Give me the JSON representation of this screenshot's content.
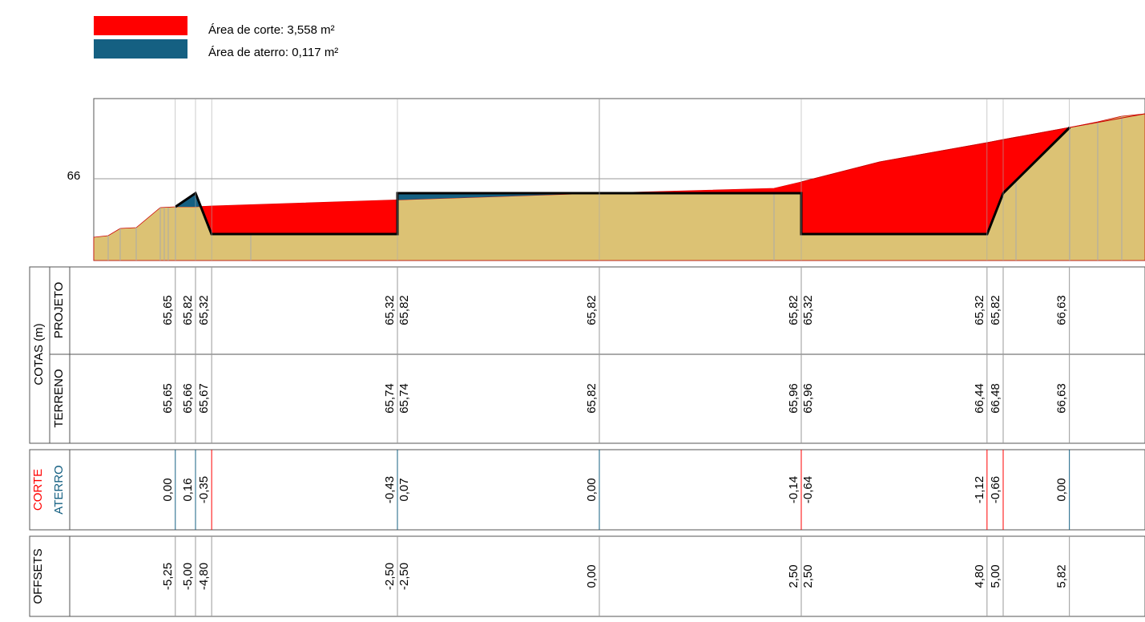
{
  "legend": [
    {
      "label": "Área de corte: 3,558 m²"
    },
    {
      "label": "Área de aterro: 0,117 m²"
    }
  ],
  "axis_label": "66",
  "headers": {
    "cotas": "COTAS (m)",
    "projeto": "PROJETO",
    "terreno": "TERRENO",
    "corte": "CORTE",
    "aterro": "ATERRO",
    "offsets": "OFFSETS"
  },
  "stations": [
    {
      "offset": "-5,25",
      "projeto": "65,65",
      "terreno": "65,65",
      "corte_aterro": "0,00"
    },
    {
      "offset": "-5,00",
      "projeto": "65,82",
      "terreno": "65,66",
      "corte_aterro": "0,16"
    },
    {
      "offset": "-4,80",
      "projeto": "65,32",
      "terreno": "65,67",
      "corte_aterro": "-0,35"
    },
    {
      "offset": "-2,50",
      "projeto": "65,32",
      "terreno": "65,74",
      "corte_aterro": "-0,43"
    },
    {
      "offset": "-2,50",
      "projeto": "65,82",
      "terreno": "65,74",
      "corte_aterro": "0,07"
    },
    {
      "offset": "0,00",
      "projeto": "65,82",
      "terreno": "65,82",
      "corte_aterro": "0,00"
    },
    {
      "offset": "2,50",
      "projeto": "65,82",
      "terreno": "65,96",
      "corte_aterro": "-0,14"
    },
    {
      "offset": "2,50",
      "projeto": "65,32",
      "terreno": "65,96",
      "corte_aterro": "-0,64"
    },
    {
      "offset": "4,80",
      "projeto": "65,32",
      "terreno": "66,44",
      "corte_aterro": "-1,12"
    },
    {
      "offset": "5,00",
      "projeto": "65,82",
      "terreno": "66,48",
      "corte_aterro": "-0,66"
    },
    {
      "offset": "5,82",
      "projeto": "66,63",
      "terreno": "66,63",
      "corte_aterro": "0,00"
    }
  ]
}
